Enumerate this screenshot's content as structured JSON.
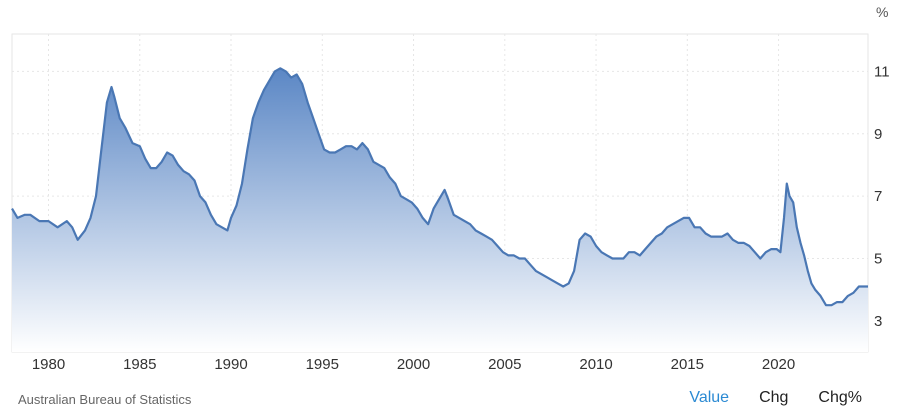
{
  "chart_data": {
    "type": "area",
    "title": "",
    "unit_label": "%",
    "xlabel": "",
    "ylabel": "",
    "xlim": [
      1978.0,
      2024.9
    ],
    "ylim": [
      2.0,
      12.2
    ],
    "x_ticks": [
      1980,
      1985,
      1990,
      1995,
      2000,
      2005,
      2010,
      2015,
      2020
    ],
    "y_ticks": [
      3,
      5,
      7,
      9,
      11
    ],
    "grid": true,
    "legend": "none",
    "colors": {
      "line": "#4a77b4",
      "fill_top": "#5b87c5",
      "fill_bottom": "#ffffff",
      "grid": "#e6e6e6"
    },
    "series": [
      {
        "x": [
          1978.0,
          1978.3,
          1978.7,
          1979.0,
          1979.5,
          1980.0,
          1980.5,
          1981.0,
          1981.3,
          1981.6,
          1982.0,
          1982.3,
          1982.6,
          1982.9,
          1983.2,
          1983.45,
          1983.6,
          1983.9,
          1984.2,
          1984.6,
          1985.0,
          1985.3,
          1985.6,
          1985.9,
          1986.2,
          1986.5,
          1986.8,
          1987.1,
          1987.4,
          1987.7,
          1988.0,
          1988.3,
          1988.6,
          1988.9,
          1989.2,
          1989.5,
          1989.8,
          1990.0,
          1990.3,
          1990.6,
          1990.9,
          1991.2,
          1991.5,
          1991.8,
          1992.1,
          1992.4,
          1992.7,
          1993.0,
          1993.3,
          1993.6,
          1993.9,
          1994.2,
          1994.5,
          1994.8,
          1995.1,
          1995.4,
          1995.7,
          1996.0,
          1996.3,
          1996.6,
          1996.9,
          1997.2,
          1997.5,
          1997.8,
          1998.1,
          1998.4,
          1998.7,
          1999.0,
          1999.3,
          1999.6,
          1999.9,
          2000.2,
          2000.5,
          2000.8,
          2001.1,
          2001.4,
          2001.7,
          2001.9,
          2002.2,
          2002.5,
          2002.8,
          2003.1,
          2003.4,
          2003.7,
          2004.0,
          2004.3,
          2004.6,
          2004.9,
          2005.2,
          2005.5,
          2005.8,
          2006.1,
          2006.4,
          2006.7,
          2007.0,
          2007.3,
          2007.6,
          2007.9,
          2008.2,
          2008.5,
          2008.8,
          2009.1,
          2009.4,
          2009.7,
          2010.0,
          2010.3,
          2010.6,
          2010.9,
          2011.2,
          2011.5,
          2011.8,
          2012.1,
          2012.4,
          2012.7,
          2013.0,
          2013.3,
          2013.6,
          2013.9,
          2014.2,
          2014.5,
          2014.8,
          2015.1,
          2015.4,
          2015.7,
          2016.0,
          2016.3,
          2016.6,
          2016.9,
          2017.2,
          2017.5,
          2017.8,
          2018.1,
          2018.4,
          2018.7,
          2019.0,
          2019.3,
          2019.6,
          2019.9,
          2020.1,
          2020.3,
          2020.45,
          2020.6,
          2020.8,
          2021.0,
          2021.2,
          2021.4,
          2021.6,
          2021.8,
          2022.0,
          2022.3,
          2022.6,
          2022.9,
          2023.2,
          2023.5,
          2023.8,
          2024.1,
          2024.4,
          2024.7,
          2024.9
        ],
        "y": [
          6.6,
          6.3,
          6.4,
          6.4,
          6.2,
          6.2,
          6.0,
          6.2,
          6.0,
          5.6,
          5.9,
          6.3,
          7.0,
          8.5,
          10.0,
          10.5,
          10.2,
          9.5,
          9.2,
          8.7,
          8.6,
          8.2,
          7.9,
          7.9,
          8.1,
          8.4,
          8.3,
          8.0,
          7.8,
          7.7,
          7.5,
          7.0,
          6.8,
          6.4,
          6.1,
          6.0,
          5.9,
          6.3,
          6.7,
          7.4,
          8.5,
          9.5,
          10.0,
          10.4,
          10.7,
          11.0,
          11.1,
          11.0,
          10.8,
          10.9,
          10.6,
          10.0,
          9.5,
          9.0,
          8.5,
          8.4,
          8.4,
          8.5,
          8.6,
          8.6,
          8.5,
          8.7,
          8.5,
          8.1,
          8.0,
          7.9,
          7.6,
          7.4,
          7.0,
          6.9,
          6.8,
          6.6,
          6.3,
          6.1,
          6.6,
          6.9,
          7.2,
          6.9,
          6.4,
          6.3,
          6.2,
          6.1,
          5.9,
          5.8,
          5.7,
          5.6,
          5.4,
          5.2,
          5.1,
          5.1,
          5.0,
          5.0,
          4.8,
          4.6,
          4.5,
          4.4,
          4.3,
          4.2,
          4.1,
          4.2,
          4.6,
          5.6,
          5.8,
          5.7,
          5.4,
          5.2,
          5.1,
          5.0,
          5.0,
          5.0,
          5.2,
          5.2,
          5.1,
          5.3,
          5.5,
          5.7,
          5.8,
          6.0,
          6.1,
          6.2,
          6.3,
          6.3,
          6.0,
          6.0,
          5.8,
          5.7,
          5.7,
          5.7,
          5.8,
          5.6,
          5.5,
          5.5,
          5.4,
          5.2,
          5.0,
          5.2,
          5.3,
          5.3,
          5.2,
          6.3,
          7.4,
          7.0,
          6.8,
          6.0,
          5.5,
          5.1,
          4.6,
          4.2,
          4.0,
          3.8,
          3.5,
          3.5,
          3.6,
          3.6,
          3.8,
          3.9,
          4.1,
          4.1,
          4.1
        ]
      }
    ]
  },
  "footer": {
    "source": "Australian Bureau of Statistics",
    "tabs": [
      {
        "label": "Value",
        "active": true
      },
      {
        "label": "Chg",
        "active": false
      },
      {
        "label": "Chg%",
        "active": false
      }
    ]
  }
}
